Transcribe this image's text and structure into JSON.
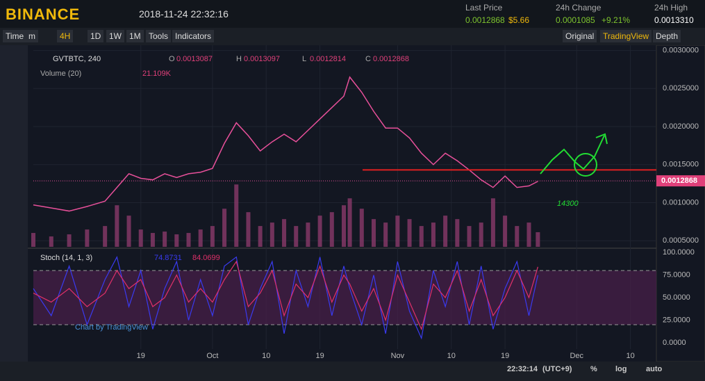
{
  "header": {
    "brand": "BINANCE",
    "datetime": "2018-11-24 22:32:16",
    "last_price_label": "Last Price",
    "last_price": "0.0012868",
    "last_price_usd": "$5.66",
    "change_label": "24h Change",
    "change": "0.0001085",
    "change_pct": "+9.21%",
    "high_label": "24h High",
    "high": "0.0013310"
  },
  "toolbar": {
    "left": [
      "Time",
      "m",
      "4H",
      "1D",
      "1W",
      "1M",
      "Tools",
      "Indicators"
    ],
    "right": [
      "Original",
      "TradingView",
      "Depth"
    ]
  },
  "legend": {
    "symbol": "GVTBTC, 240",
    "o_label": "O",
    "o": "0.0013087",
    "h_label": "H",
    "h": "0.0013097",
    "l_label": "L",
    "l": "0.0012814",
    "c_label": "C",
    "c": "0.0012868",
    "volume_label": "Volume (20)",
    "volume": "21.109K",
    "stoch_label": "Stoch (14, 1, 3)",
    "stoch_k": "74.8731",
    "stoch_d": "84.0699",
    "watermark": "Chart by TradingView"
  },
  "chart_data": {
    "type": "line",
    "x": [
      0,
      3,
      6,
      9,
      12,
      14,
      16,
      18,
      20,
      22,
      24,
      26,
      28,
      30,
      32,
      34,
      36,
      38,
      40,
      42,
      44,
      46,
      48,
      50,
      52,
      53,
      55,
      57,
      59,
      61,
      63,
      65,
      67,
      69,
      71,
      73,
      75,
      77,
      79,
      81,
      83,
      84.5
    ],
    "xlim": [
      0,
      104
    ],
    "xticks": [
      {
        "value": 18,
        "label": "19"
      },
      {
        "value": 30,
        "label": "Oct"
      },
      {
        "value": 39,
        "label": "10"
      },
      {
        "value": 48,
        "label": "19"
      },
      {
        "value": 61,
        "label": "Nov"
      },
      {
        "value": 70,
        "label": "10"
      },
      {
        "value": 79,
        "label": "19"
      },
      {
        "value": 91,
        "label": "Dec"
      },
      {
        "value": 100,
        "label": "10"
      }
    ],
    "price": {
      "color": "#e8509a",
      "values": [
        0.00097,
        0.00093,
        0.00089,
        0.00095,
        0.00102,
        0.0012,
        0.00138,
        0.00132,
        0.0013,
        0.00138,
        0.00133,
        0.00138,
        0.0014,
        0.00145,
        0.00178,
        0.00205,
        0.00188,
        0.00168,
        0.0018,
        0.0019,
        0.0018,
        0.00195,
        0.0021,
        0.00225,
        0.0024,
        0.00265,
        0.00245,
        0.0022,
        0.00198,
        0.00198,
        0.00185,
        0.00165,
        0.0015,
        0.00165,
        0.00155,
        0.00143,
        0.0013,
        0.0012,
        0.00135,
        0.0012,
        0.00122,
        0.00128
      ]
    },
    "ylim": [
      0.00042,
      0.00306
    ],
    "yticks": [
      {
        "value": 0.0005,
        "label": "0.0005000"
      },
      {
        "value": 0.001,
        "label": "0.0010000"
      },
      {
        "value": 0.0015,
        "label": "0.0015000"
      },
      {
        "value": 0.002,
        "label": "0.0020000"
      },
      {
        "value": 0.0025,
        "label": "0.0025000"
      },
      {
        "value": 0.003,
        "label": "0.0030000"
      }
    ],
    "current_price": {
      "value": 0.0012868,
      "label": "0.0012868"
    },
    "annotation_line": {
      "value": 0.00143,
      "color": "#e02020"
    },
    "annotation_text": "14300",
    "volume": {
      "color": "#8a3a6a",
      "ylim": [
        0,
        290
      ],
      "values": [
        20,
        15,
        18,
        25,
        30,
        60,
        45,
        25,
        20,
        22,
        18,
        20,
        25,
        30,
        55,
        90,
        50,
        30,
        35,
        40,
        30,
        35,
        45,
        50,
        60,
        70,
        55,
        40,
        35,
        45,
        40,
        30,
        35,
        45,
        40,
        30,
        35,
        70,
        45,
        30,
        35,
        21.109
      ]
    },
    "stoch": {
      "ylim": [
        -7,
        104
      ],
      "bands": [
        20,
        80
      ],
      "yticks": [
        {
          "value": 0,
          "label": "0.0000"
        },
        {
          "value": 25,
          "label": "25.0000"
        },
        {
          "value": 50,
          "label": "50.0000"
        },
        {
          "value": 75,
          "label": "75.0000"
        },
        {
          "value": 100,
          "label": "100.0000"
        }
      ],
      "series": [
        {
          "name": "K",
          "color": "#3a3af0",
          "values": [
            60,
            30,
            85,
            20,
            70,
            95,
            40,
            80,
            15,
            60,
            90,
            25,
            70,
            30,
            85,
            95,
            20,
            60,
            90,
            10,
            80,
            40,
            95,
            30,
            85,
            60,
            20,
            75,
            10,
            90,
            35,
            5,
            80,
            40,
            90,
            20,
            85,
            15,
            60,
            90,
            30,
            74.8731
          ]
        },
        {
          "name": "D",
          "color": "#e0306a",
          "values": [
            55,
            45,
            60,
            40,
            55,
            80,
            60,
            70,
            40,
            50,
            75,
            45,
            60,
            45,
            70,
            90,
            40,
            55,
            80,
            30,
            65,
            50,
            85,
            45,
            75,
            65,
            35,
            60,
            25,
            75,
            45,
            15,
            65,
            50,
            80,
            35,
            70,
            30,
            50,
            80,
            50,
            84.0699
          ]
        }
      ]
    }
  },
  "footer": {
    "time": "22:32:14",
    "tz": "(UTC+9)",
    "pct": "%",
    "log": "log",
    "auto": "auto"
  }
}
